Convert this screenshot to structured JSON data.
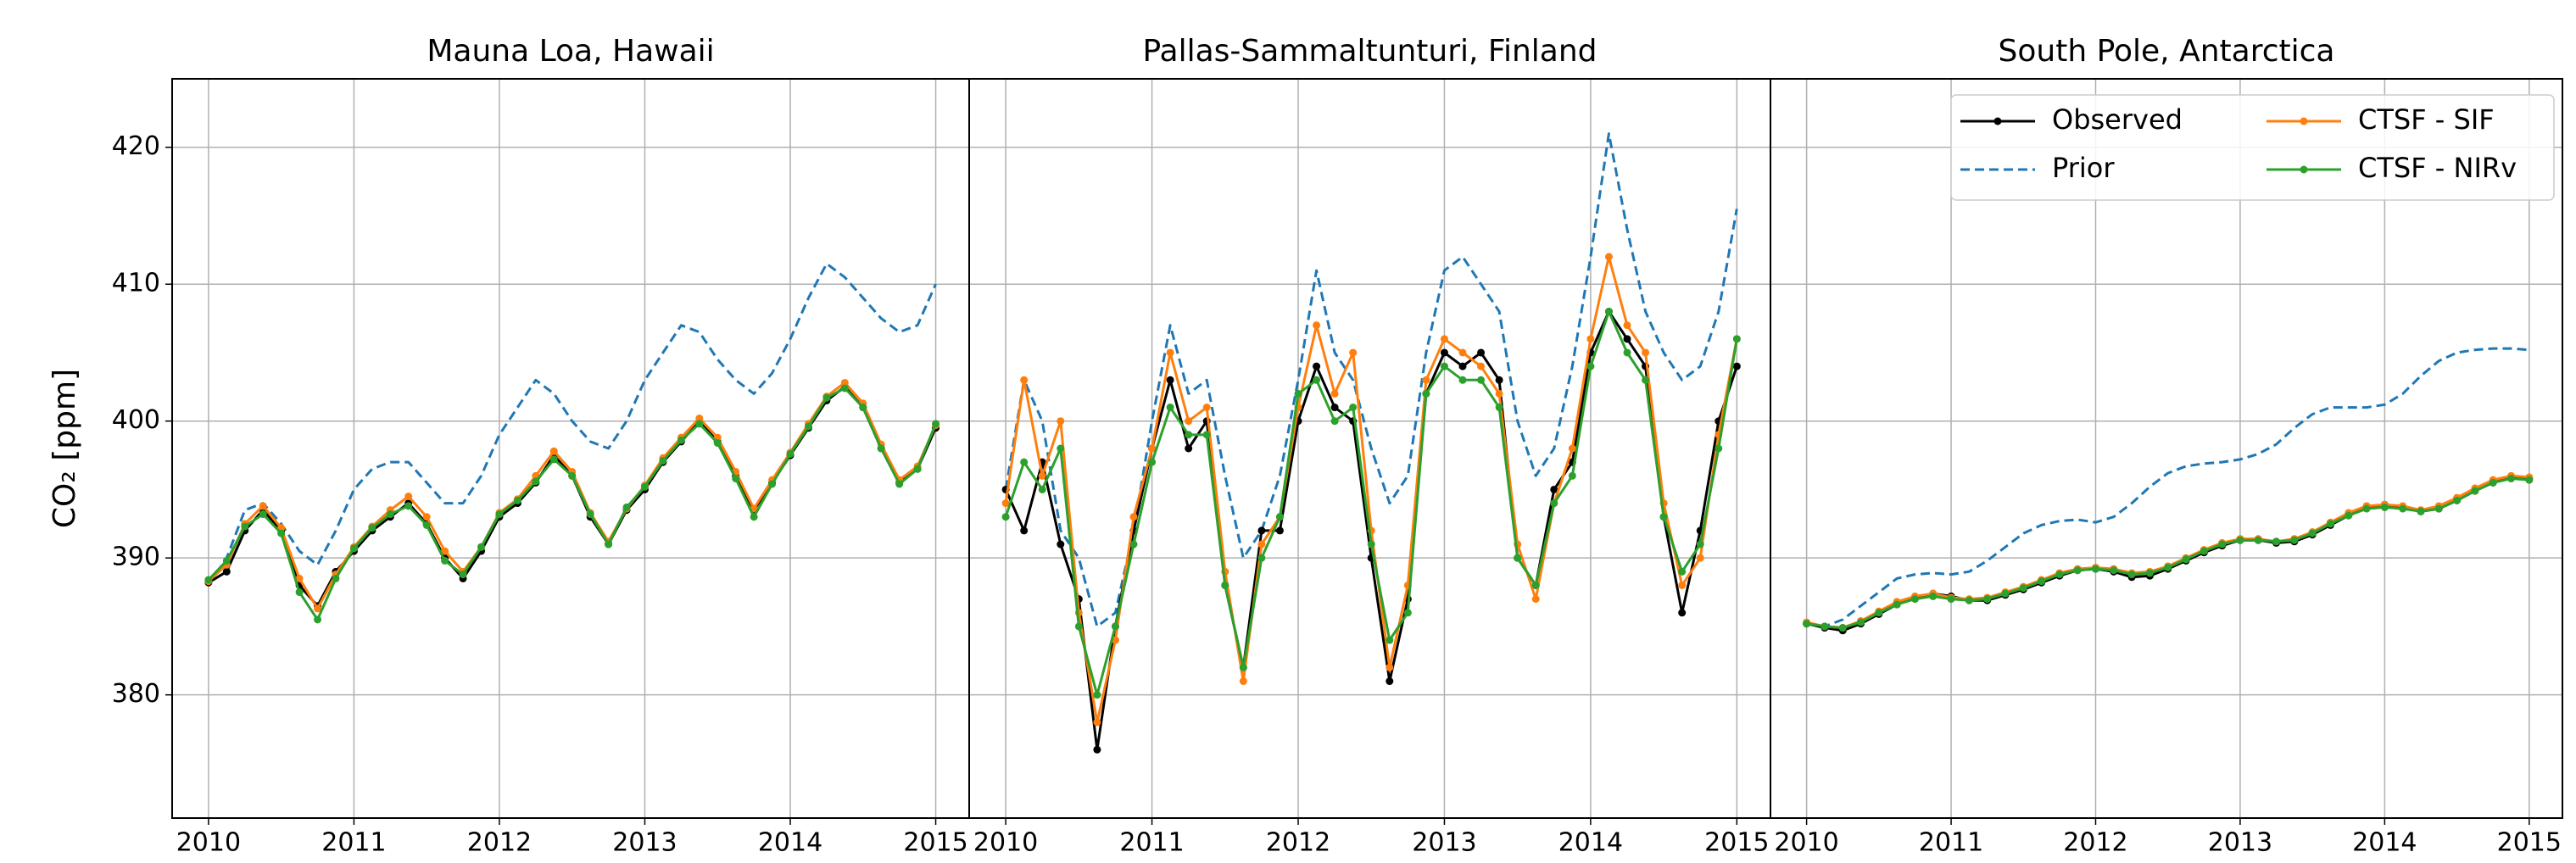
{
  "chart_data": [
    {
      "type": "line",
      "title": "Mauna Loa, Hawaii",
      "ylabel": "CO₂ [ppm]",
      "ylim": [
        371,
        425
      ],
      "yticks": [
        380,
        390,
        400,
        410,
        420
      ],
      "xlim": [
        2009.75,
        2015.23
      ],
      "xticks": [
        2010,
        2011,
        2012,
        2013,
        2014,
        2015
      ],
      "grid": true,
      "x": [
        2010,
        2010.125,
        2010.25,
        2010.375,
        2010.5,
        2010.625,
        2010.75,
        2010.875,
        2011,
        2011.125,
        2011.25,
        2011.375,
        2011.5,
        2011.625,
        2011.75,
        2011.875,
        2012,
        2012.125,
        2012.25,
        2012.375,
        2012.5,
        2012.625,
        2012.75,
        2012.875,
        2013,
        2013.125,
        2013.25,
        2013.375,
        2013.5,
        2013.625,
        2013.75,
        2013.875,
        2014,
        2014.125,
        2014.25,
        2014.375,
        2014.5,
        2014.625,
        2014.75,
        2014.875,
        2015
      ],
      "series": [
        {
          "color": "#1f77b4",
          "style": "dashed",
          "values": [
            388,
            390,
            393.5,
            394,
            392.5,
            390.5,
            389.5,
            392,
            395,
            396.5,
            397,
            397,
            395.5,
            394,
            394,
            396,
            399,
            401,
            403,
            402,
            400,
            398.5,
            398,
            400,
            403,
            405,
            407,
            406.5,
            404.5,
            403,
            402,
            403.5,
            406,
            409,
            411.5,
            410.5,
            409,
            407.5,
            406.5,
            407,
            410
          ]
        },
        {
          "color": "#000000",
          "style": "marker",
          "values": [
            388.2,
            389,
            392,
            393.5,
            392,
            388,
            386.5,
            389,
            390.5,
            392,
            393,
            394,
            392.5,
            390,
            388.5,
            390.5,
            393,
            394,
            395.5,
            397.5,
            396,
            393,
            391,
            393.5,
            395,
            397,
            398.5,
            400,
            398.5,
            396,
            393.5,
            395.5,
            397.5,
            399.5,
            401.5,
            402.5,
            401,
            398,
            395.5,
            396.5,
            399.5
          ]
        },
        {
          "color": "#ff7f0e",
          "style": "marker",
          "values": [
            388.3,
            389.5,
            392.5,
            393.8,
            392.2,
            388.5,
            386.3,
            388.8,
            390.8,
            392.3,
            393.5,
            394.5,
            393,
            390.5,
            389,
            390.8,
            393.3,
            394.3,
            396,
            397.8,
            396.3,
            393.3,
            391.2,
            393.6,
            395.3,
            397.3,
            398.8,
            400.2,
            398.8,
            396.3,
            393.6,
            395.7,
            397.7,
            399.8,
            401.8,
            402.8,
            401.3,
            398.3,
            395.7,
            396.7,
            399.7
          ]
        },
        {
          "color": "#2ca02c",
          "style": "marker",
          "values": [
            388.4,
            389.8,
            392.3,
            393.2,
            391.8,
            387.5,
            385.5,
            388.5,
            390.7,
            392.2,
            393.2,
            393.8,
            392.4,
            389.8,
            388.8,
            390.8,
            393.2,
            394.2,
            395.6,
            397.2,
            396,
            393.2,
            391,
            393.7,
            395.2,
            397.1,
            398.6,
            399.8,
            398.4,
            395.8,
            393,
            395.4,
            397.6,
            399.6,
            401.7,
            402.4,
            401,
            398,
            395.4,
            396.5,
            399.8
          ]
        }
      ]
    },
    {
      "type": "line",
      "title": "Pallas-Sammaltunturi, Finland",
      "xlim": [
        2009.75,
        2015.23
      ],
      "xticks": [
        2010,
        2011,
        2012,
        2013,
        2014,
        2015
      ],
      "grid": true,
      "x": [
        2010,
        2010.125,
        2010.25,
        2010.375,
        2010.5,
        2010.625,
        2010.75,
        2010.875,
        2011,
        2011.125,
        2011.25,
        2011.375,
        2011.5,
        2011.625,
        2011.75,
        2011.875,
        2012,
        2012.125,
        2012.25,
        2012.375,
        2012.5,
        2012.625,
        2012.75,
        2012.875,
        2013,
        2013.125,
        2013.25,
        2013.375,
        2013.5,
        2013.625,
        2013.75,
        2013.875,
        2014,
        2014.125,
        2014.25,
        2014.375,
        2014.5,
        2014.625,
        2014.75,
        2014.875,
        2015
      ],
      "series": [
        {
          "color": "#1f77b4",
          "style": "dashed",
          "values": [
            395,
            403,
            400,
            392,
            390,
            385,
            386,
            392,
            400,
            407,
            402,
            403,
            396,
            390,
            392,
            396,
            403,
            411,
            405,
            403,
            398,
            394,
            396,
            405,
            411,
            412,
            410,
            408,
            400,
            396,
            398,
            404,
            412,
            421,
            414,
            408,
            405,
            403,
            404,
            408,
            415.5
          ]
        },
        {
          "color": "#000000",
          "style": "marker",
          "values": [
            395,
            392,
            397,
            391,
            387,
            376,
            385,
            392,
            398,
            403,
            398,
            400,
            388,
            382,
            392,
            392,
            400,
            404,
            401,
            400,
            390,
            381,
            387,
            402,
            405,
            404,
            405,
            403,
            390,
            388,
            395,
            397,
            405,
            408,
            406,
            404,
            393,
            386,
            392,
            400,
            404
          ]
        },
        {
          "color": "#ff7f0e",
          "style": "marker",
          "values": [
            394,
            403,
            396,
            400,
            386,
            378,
            384,
            393,
            398,
            405,
            400,
            401,
            389,
            381,
            391,
            393,
            401,
            407,
            402,
            405,
            392,
            382,
            388,
            403,
            406,
            405,
            404,
            402,
            391,
            387,
            394,
            398,
            406,
            412,
            407,
            405,
            394,
            388,
            390,
            399,
            406
          ]
        },
        {
          "color": "#2ca02c",
          "style": "marker",
          "values": [
            393,
            397,
            395,
            398,
            385,
            380,
            385,
            391,
            397,
            401,
            399,
            399,
            388,
            382,
            390,
            393,
            402,
            403,
            400,
            401,
            391,
            384,
            386,
            402,
            404,
            403,
            403,
            401,
            390,
            388,
            394,
            396,
            404,
            408,
            405,
            403,
            393,
            389,
            391,
            398,
            406
          ]
        }
      ]
    },
    {
      "type": "line",
      "title": "South Pole, Antarctica",
      "legend": "upper right",
      "xlim": [
        2009.75,
        2015.23
      ],
      "xticks": [
        2010,
        2011,
        2012,
        2013,
        2014,
        2015
      ],
      "grid": true,
      "x": [
        2010,
        2010.125,
        2010.25,
        2010.375,
        2010.5,
        2010.625,
        2010.75,
        2010.875,
        2011,
        2011.125,
        2011.25,
        2011.375,
        2011.5,
        2011.625,
        2011.75,
        2011.875,
        2012,
        2012.125,
        2012.25,
        2012.375,
        2012.5,
        2012.625,
        2012.75,
        2012.875,
        2013,
        2013.125,
        2013.25,
        2013.375,
        2013.5,
        2013.625,
        2013.75,
        2013.875,
        2014,
        2014.125,
        2014.25,
        2014.375,
        2014.5,
        2014.625,
        2014.75,
        2014.875,
        2015
      ],
      "series": [
        {
          "name": "Observed",
          "color": "#000000",
          "style": "marker",
          "values": [
            385.2,
            384.9,
            384.7,
            385.2,
            385.9,
            386.6,
            387.1,
            387.4,
            387.2,
            386.9,
            386.9,
            387.3,
            387.7,
            388.2,
            388.7,
            389.1,
            389.2,
            389.0,
            388.6,
            388.7,
            389.2,
            389.8,
            390.4,
            390.9,
            391.3,
            391.3,
            391.1,
            391.2,
            391.7,
            392.4,
            393.1,
            393.7,
            393.9,
            393.7,
            393.4,
            393.6,
            394.2,
            394.9,
            395.5,
            395.9,
            395.8
          ]
        },
        {
          "name": "Prior",
          "color": "#1f77b4",
          "style": "dashed",
          "values": [
            385.2,
            385.0,
            385.5,
            386.5,
            387.5,
            388.5,
            388.8,
            388.9,
            388.8,
            389.0,
            389.8,
            390.8,
            391.8,
            392.4,
            392.7,
            392.8,
            392.6,
            393.0,
            394.0,
            395.2,
            396.2,
            396.7,
            396.9,
            397.0,
            397.2,
            397.6,
            398.3,
            399.5,
            400.5,
            401.0,
            401.0,
            401.0,
            401.2,
            402.0,
            403.3,
            404.4,
            405.0,
            405.2,
            405.3,
            405.3,
            405.2
          ]
        },
        {
          "name": "CTSF - SIF",
          "color": "#ff7f0e",
          "style": "marker",
          "values": [
            385.3,
            385.0,
            384.9,
            385.4,
            386.1,
            386.8,
            387.2,
            387.4,
            387.1,
            387.0,
            387.1,
            387.5,
            387.9,
            388.4,
            388.9,
            389.2,
            389.3,
            389.2,
            388.9,
            389.0,
            389.4,
            390.0,
            390.6,
            391.1,
            391.4,
            391.4,
            391.2,
            391.4,
            391.9,
            392.6,
            393.3,
            393.8,
            393.9,
            393.8,
            393.5,
            393.8,
            394.4,
            395.1,
            395.7,
            396.0,
            395.9
          ]
        },
        {
          "name": "CTSF - NIRv",
          "color": "#2ca02c",
          "style": "marker",
          "values": [
            385.2,
            385.0,
            384.9,
            385.3,
            386.0,
            386.6,
            387.0,
            387.2,
            387.0,
            386.9,
            387.0,
            387.4,
            387.8,
            388.3,
            388.8,
            389.1,
            389.2,
            389.1,
            388.8,
            388.9,
            389.3,
            389.9,
            390.5,
            391.0,
            391.3,
            391.3,
            391.2,
            391.3,
            391.8,
            392.5,
            393.1,
            393.6,
            393.7,
            393.6,
            393.4,
            393.6,
            394.2,
            394.9,
            395.5,
            395.8,
            395.7
          ]
        }
      ]
    }
  ]
}
